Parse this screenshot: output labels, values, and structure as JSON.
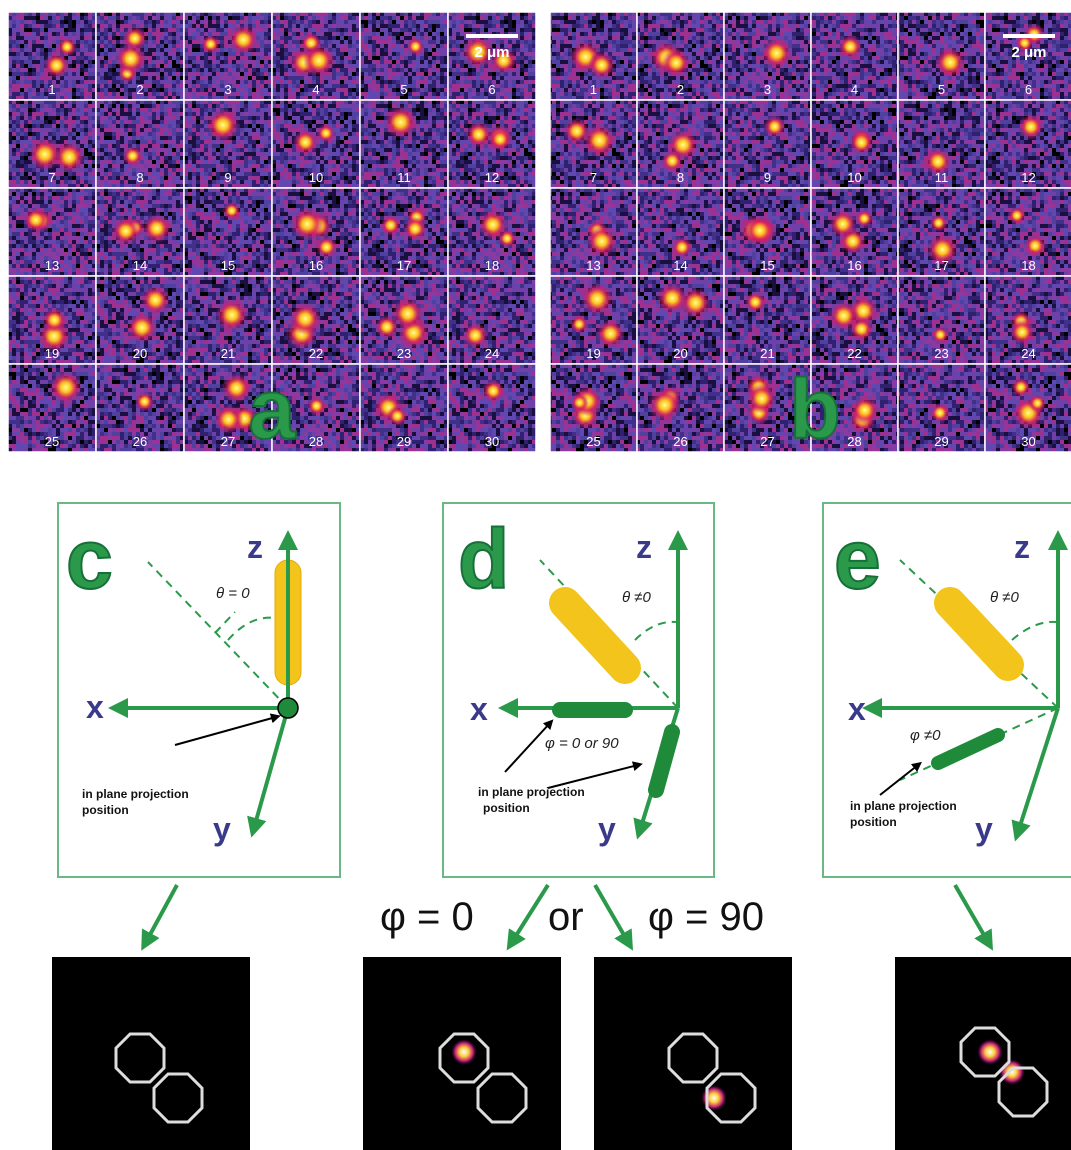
{
  "panel_a": {
    "label": "a",
    "scale_bar": "2 μm",
    "tiles": [
      "1",
      "2",
      "3",
      "4",
      "5",
      "6",
      "7",
      "8",
      "9",
      "10",
      "11",
      "12",
      "13",
      "14",
      "15",
      "16",
      "17",
      "18",
      "19",
      "20",
      "21",
      "22",
      "23",
      "24",
      "25",
      "26",
      "27",
      "28",
      "29",
      "30"
    ]
  },
  "panel_b": {
    "label": "b",
    "scale_bar": "2 μm",
    "tiles": [
      "1",
      "2",
      "3",
      "4",
      "5",
      "6",
      "7",
      "8",
      "9",
      "10",
      "11",
      "12",
      "13",
      "14",
      "15",
      "16",
      "17",
      "18",
      "19",
      "20",
      "21",
      "22",
      "23",
      "24",
      "25",
      "26",
      "27",
      "28",
      "29",
      "30"
    ]
  },
  "panel_c": {
    "label": "c",
    "z": "z",
    "x": "x",
    "y": "y",
    "angle": "θ = 0",
    "annotation": [
      "in plane projection",
      "position"
    ]
  },
  "panel_d": {
    "label": "d",
    "z": "z",
    "x": "x",
    "y": "y",
    "angle": "θ ≠0",
    "phi": "φ = 0  or  90",
    "annotation": [
      "in plane projection",
      "position"
    ]
  },
  "panel_e": {
    "label": "e",
    "z": "z",
    "x": "x",
    "y": "y",
    "angle": "θ ≠0",
    "phi": "φ ≠0",
    "annotation": [
      "in plane projection",
      "position"
    ]
  },
  "caption_row": {
    "phi_0": "φ = 0",
    "or": "or",
    "phi_90": "φ = 90"
  }
}
